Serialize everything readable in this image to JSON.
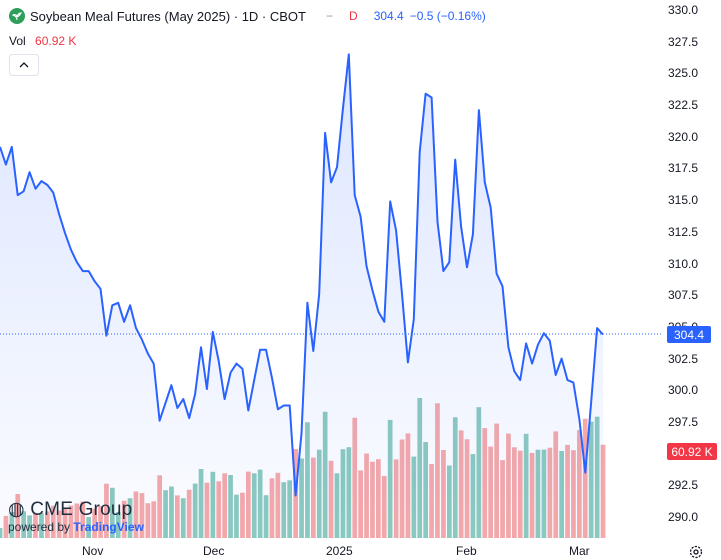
{
  "header": {
    "title": "Soybean Meal Futures (May 2025) · 1D · CBOT",
    "dash": "−",
    "badge": "D",
    "last": "304.4",
    "change": "−0.5 (−0.16%)"
  },
  "volume": {
    "label": "Vol",
    "value": "60.92 K"
  },
  "price_tag": "304.4",
  "volume_tag": "60.92 K",
  "brand": {
    "name": "CME Group",
    "powered": "powered by",
    "tv": "TradingView"
  },
  "colors": {
    "line": "#2962ff",
    "vol_up": "#8ccbbf",
    "vol_down": "#f7a9a9",
    "price_tag": "#2962ff",
    "vol_tag": "#f23645"
  },
  "icons": {
    "logo": "sprout-icon",
    "collapse": "chevron-up-icon",
    "settings": "gear-icon"
  },
  "chart_data": {
    "type": "area",
    "y_ticks": [
      "330.0",
      "327.5",
      "325.0",
      "322.5",
      "320.0",
      "317.5",
      "315.0",
      "312.5",
      "310.0",
      "307.5",
      "305.0",
      "302.5",
      "300.0",
      "297.5",
      "295.0",
      "292.5",
      "290.0"
    ],
    "x_ticks": [
      "Nov",
      "Dec",
      "2025",
      "Feb",
      "Mar"
    ],
    "ylim": [
      288.7,
      330.2
    ],
    "close": [
      319.2,
      317.8,
      319.2,
      315.4,
      315.7,
      317.2,
      315.9,
      316.5,
      316.2,
      315.6,
      313.9,
      312.4,
      311.1,
      310.1,
      309.4,
      309.4,
      308.6,
      308.0,
      304.3,
      306.7,
      306.9,
      305.4,
      306.7,
      304.9,
      304.0,
      302.9,
      302.1,
      297.6,
      299.0,
      300.4,
      298.6,
      299.3,
      297.8,
      299.7,
      303.4,
      300.1,
      304.6,
      302.3,
      299.3,
      301.4,
      302.1,
      301.7,
      298.4,
      300.8,
      303.2,
      303.2,
      301.0,
      298.5,
      298.8,
      298.8,
      291.7,
      296.6,
      306.9,
      303.1,
      307.6,
      320.3,
      316.4,
      317.6,
      322.2,
      326.5,
      315.4,
      313.7,
      309.8,
      307.9,
      306.2,
      305.4,
      314.9,
      312.6,
      307.6,
      302.2,
      305.6,
      318.8,
      323.4,
      323.1,
      313.3,
      309.4,
      310.1,
      318.2,
      312.9,
      309.7,
      312.3,
      322.1,
      316.4,
      314.4,
      309.2,
      308.2,
      303.4,
      301.5,
      300.8,
      303.7,
      302.1,
      303.6,
      304.5,
      303.9,
      301.2,
      302.5,
      300.8,
      300.6,
      297.7,
      293.5,
      299.1,
      304.9,
      304.4
    ],
    "volume_bars": 103,
    "last_price": 304.4,
    "last_volume": "60.92 K"
  }
}
